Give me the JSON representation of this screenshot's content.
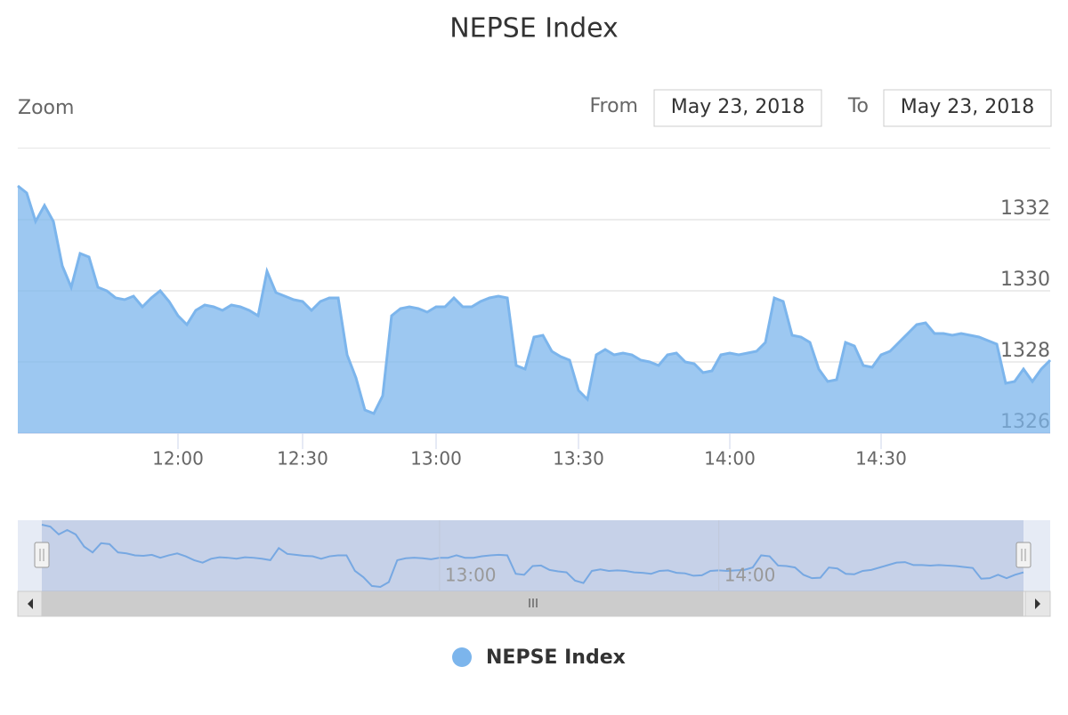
{
  "chart_data": {
    "type": "area",
    "title": "NEPSE Index",
    "range_selector": {
      "zoom_label": "Zoom",
      "from_label": "From",
      "from_date": "May 23, 2018",
      "to_label": "To",
      "to_date": "May 23, 2018"
    },
    "categories": [
      null,
      null,
      null,
      null,
      null,
      null,
      null,
      null,
      null,
      null,
      null,
      null,
      null,
      null,
      null,
      null,
      null,
      null,
      "12:00",
      null,
      null,
      null,
      null,
      null,
      null,
      null,
      null,
      null,
      null,
      null,
      null,
      null,
      "12:30",
      null,
      null,
      null,
      null,
      null,
      null,
      null,
      null,
      null,
      null,
      null,
      null,
      null,
      null,
      "13:00",
      null,
      null,
      null,
      null,
      null,
      null,
      null,
      null,
      null,
      null,
      null,
      null,
      null,
      null,
      null,
      "13:30",
      null,
      null,
      null,
      null,
      null,
      null,
      null,
      null,
      null,
      null,
      null,
      null,
      null,
      null,
      null,
      null,
      "14:00",
      null,
      null,
      null,
      null,
      null,
      null,
      null,
      null,
      null,
      null,
      null,
      null,
      null,
      null,
      null,
      null,
      "14:30",
      null,
      null,
      null,
      null,
      null,
      null,
      null,
      null,
      null,
      null,
      null,
      null,
      null,
      null,
      null,
      null,
      null,
      null,
      null
    ],
    "series": [
      {
        "name": "NEPSE Index",
        "color": "#7cb5ec",
        "values": [
          1332.95,
          1332.75,
          1331.95,
          1332.4,
          1331.95,
          1330.7,
          1330.1,
          1331.05,
          1330.95,
          1330.1,
          1330.0,
          1329.8,
          1329.75,
          1329.85,
          1329.55,
          1329.8,
          1330.0,
          1329.7,
          1329.3,
          1329.05,
          1329.45,
          1329.6,
          1329.55,
          1329.45,
          1329.6,
          1329.55,
          1329.45,
          1329.3,
          1330.55,
          1329.95,
          1329.85,
          1329.75,
          1329.7,
          1329.45,
          1329.7,
          1329.8,
          1329.8,
          1328.2,
          1327.55,
          1326.65,
          1326.55,
          1327.05,
          1329.3,
          1329.5,
          1329.55,
          1329.5,
          1329.4,
          1329.55,
          1329.55,
          1329.8,
          1329.55,
          1329.55,
          1329.7,
          1329.8,
          1329.85,
          1329.8,
          1327.9,
          1327.8,
          1328.7,
          1328.75,
          1328.3,
          1328.15,
          1328.05,
          1327.2,
          1326.95,
          1328.2,
          1328.35,
          1328.2,
          1328.25,
          1328.2,
          1328.05,
          1328.0,
          1327.9,
          1328.2,
          1328.25,
          1328.0,
          1327.95,
          1327.7,
          1327.75,
          1328.2,
          1328.25,
          1328.2,
          1328.25,
          1328.3,
          1328.55,
          1329.8,
          1329.7,
          1328.75,
          1328.7,
          1328.55,
          1327.8,
          1327.45,
          1327.5,
          1328.55,
          1328.45,
          1327.9,
          1327.85,
          1328.2,
          1328.3,
          1328.55,
          1328.8,
          1329.05,
          1329.1,
          1328.8,
          1328.8,
          1328.75,
          1328.8,
          1328.75,
          1328.7,
          1328.6,
          1328.5,
          1327.4,
          1327.45,
          1327.8,
          1327.45,
          1327.8,
          1328.05
        ]
      }
    ],
    "ylim": [
      1326,
      1334
    ],
    "yticks": [
      1326,
      1328,
      1330,
      1332
    ],
    "grid": true,
    "legend": "bottom"
  }
}
